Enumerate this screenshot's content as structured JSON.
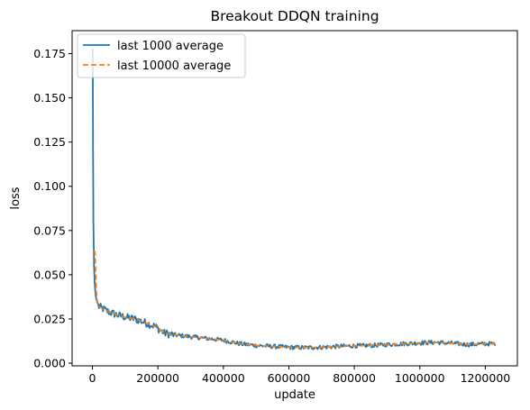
{
  "chart_data": {
    "type": "line",
    "title": "Breakout DDQN training",
    "xlabel": "update",
    "ylabel": "loss",
    "xlim": [
      -62000,
      1298000
    ],
    "ylim": [
      -0.0015,
      0.188
    ],
    "x_ticks": [
      0,
      200000,
      400000,
      600000,
      800000,
      1000000,
      1200000
    ],
    "x_tick_labels": [
      "0",
      "200000",
      "400000",
      "600000",
      "800000",
      "1000000",
      "1200000"
    ],
    "y_ticks": [
      0.0,
      0.025,
      0.05,
      0.075,
      0.1,
      0.125,
      0.15,
      0.175
    ],
    "y_tick_labels": [
      "0.000",
      "0.025",
      "0.050",
      "0.075",
      "0.100",
      "0.125",
      "0.150",
      "0.175"
    ],
    "grid": false,
    "legend_position": "upper-left",
    "series": [
      {
        "name": "last 1000 average",
        "color": "#1f77b4",
        "style": "solid",
        "x": [
          1000,
          2000,
          3000,
          5000,
          7000,
          10000,
          15000,
          20000,
          30000,
          50000,
          80000,
          100000,
          130000,
          160000,
          190000,
          220000,
          250000,
          300000,
          350000,
          400000,
          450000,
          500000,
          550000,
          600000,
          650000,
          700000,
          750000,
          800000,
          850000,
          900000,
          950000,
          1000000,
          1050000,
          1100000,
          1150000,
          1200000,
          1230000
        ],
        "y": [
          0.178,
          0.12,
          0.08,
          0.055,
          0.045,
          0.038,
          0.034,
          0.032,
          0.031,
          0.029,
          0.027,
          0.026,
          0.025,
          0.023,
          0.021,
          0.017,
          0.016,
          0.015,
          0.014,
          0.013,
          0.011,
          0.01,
          0.0095,
          0.009,
          0.0088,
          0.009,
          0.0095,
          0.0098,
          0.01,
          0.0105,
          0.011,
          0.0115,
          0.0118,
          0.0112,
          0.0105,
          0.011,
          0.011
        ],
        "noise": 0.0022
      },
      {
        "name": "last 10000 average",
        "color": "#ff7f0e",
        "style": "dashed",
        "x": [
          3000,
          5000,
          8000,
          10000,
          12000,
          15000,
          20000,
          30000,
          50000,
          80000,
          100000,
          130000,
          160000,
          190000,
          220000,
          250000,
          300000,
          350000,
          400000,
          450000,
          500000,
          550000,
          600000,
          650000,
          700000,
          750000,
          800000,
          850000,
          900000,
          950000,
          1000000,
          1050000,
          1100000,
          1150000,
          1200000,
          1230000
        ],
        "y": [
          0.063,
          0.063,
          0.063,
          0.05,
          0.04,
          0.035,
          0.032,
          0.031,
          0.029,
          0.027,
          0.026,
          0.025,
          0.023,
          0.021,
          0.017,
          0.016,
          0.015,
          0.014,
          0.013,
          0.011,
          0.01,
          0.0095,
          0.009,
          0.0088,
          0.009,
          0.0095,
          0.0098,
          0.01,
          0.0105,
          0.011,
          0.0115,
          0.0118,
          0.0112,
          0.0105,
          0.011,
          0.011
        ]
      }
    ]
  }
}
